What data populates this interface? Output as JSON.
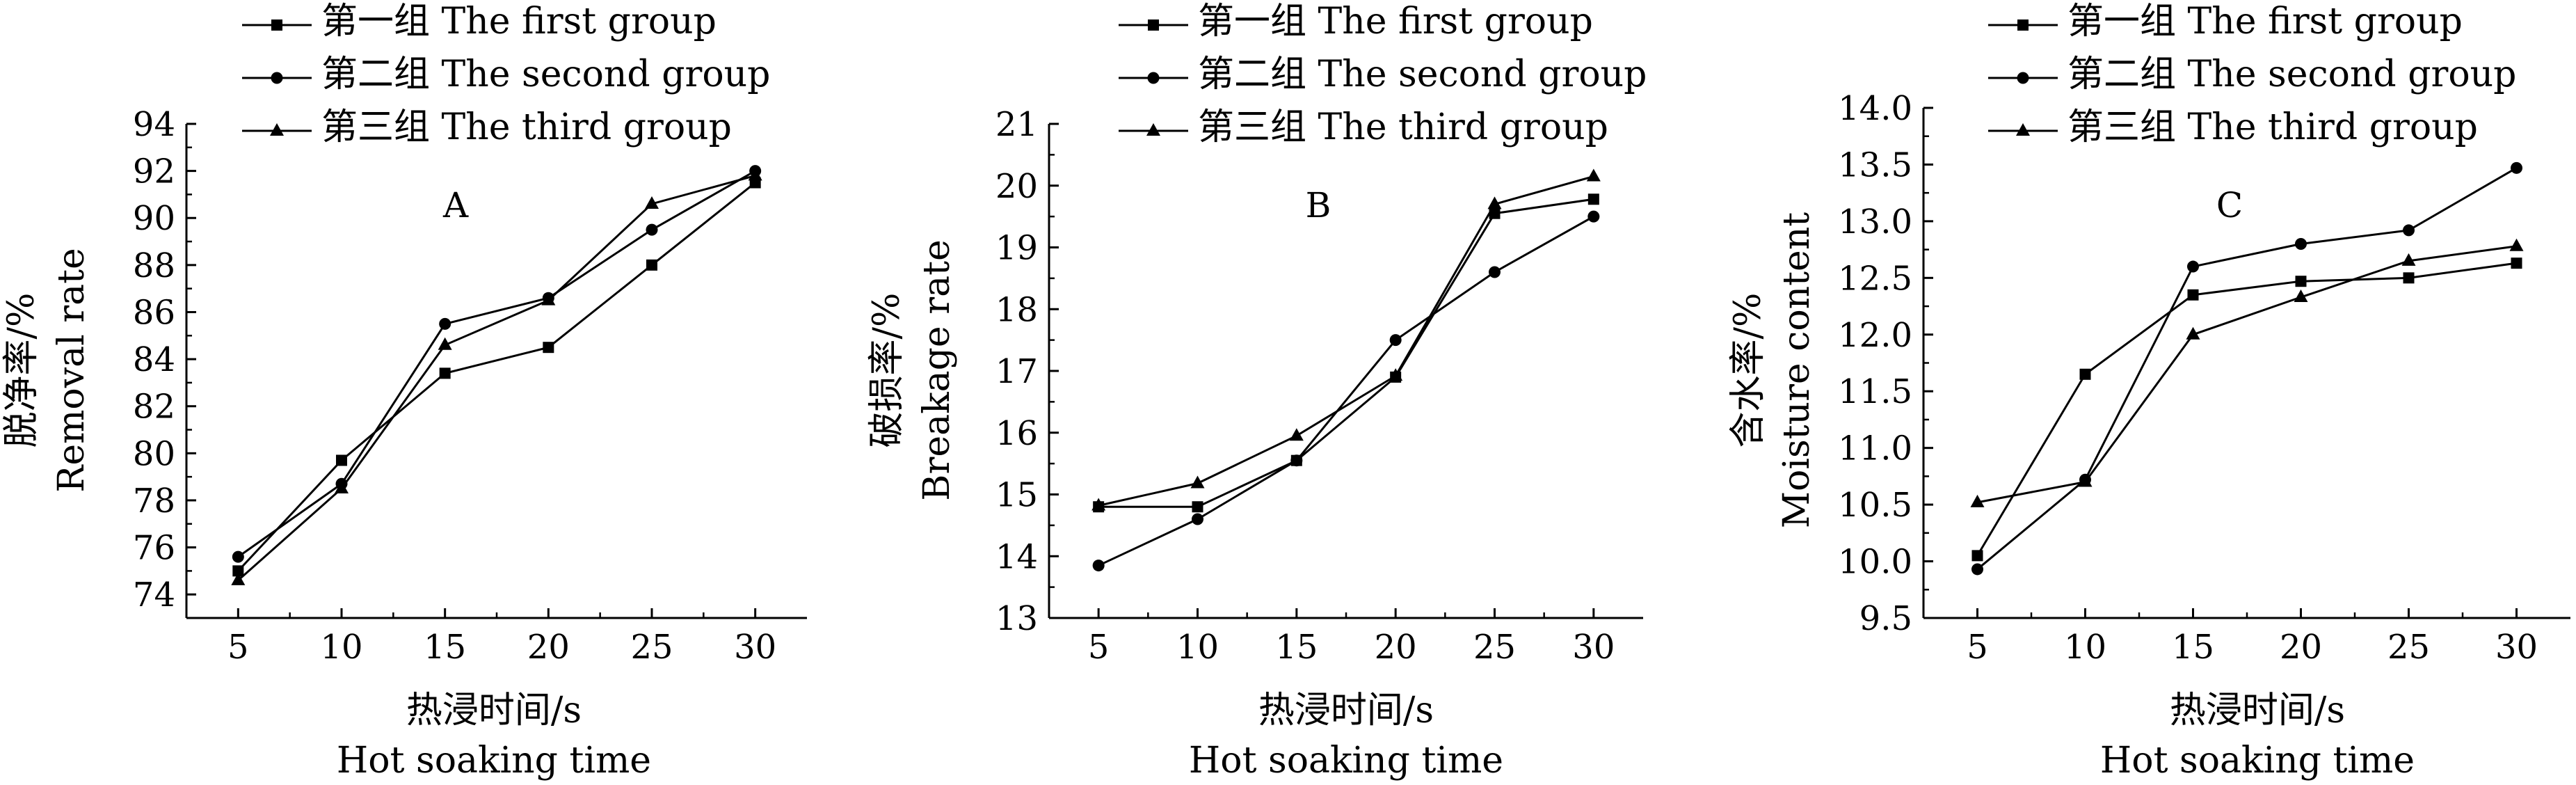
{
  "legend": [
    {
      "label": "第一组 The first group",
      "marker": "square"
    },
    {
      "label": "第二组 The second group",
      "marker": "circle"
    },
    {
      "label": "第三组 The third group",
      "marker": "triangle"
    }
  ],
  "chart_data": [
    {
      "type": "line",
      "panel_label": "A",
      "ylabel_cn": "脱净率/%",
      "ylabel_en": "Removal rate",
      "xlabel_cn": "热浸时间/s",
      "xlabel_en": "Hot soaking time",
      "x": [
        5,
        10,
        15,
        20,
        25,
        30
      ],
      "xlim": [
        2.5,
        32.5
      ],
      "ylim": [
        73,
        94
      ],
      "yticks": [
        74,
        76,
        78,
        80,
        82,
        84,
        86,
        88,
        90,
        92,
        94
      ],
      "ytick_labels": [
        "74",
        "76",
        "78",
        "80",
        "82",
        "84",
        "86",
        "88",
        "90",
        "92",
        "94"
      ],
      "xticks": [
        5,
        10,
        15,
        20,
        25,
        30
      ],
      "series": [
        {
          "name": "第一组 The first group",
          "marker": "square",
          "values": [
            75.0,
            79.7,
            83.4,
            84.5,
            88.0,
            91.5
          ]
        },
        {
          "name": "第二组 The second group",
          "marker": "circle",
          "values": [
            75.6,
            78.7,
            85.5,
            86.6,
            89.5,
            92.0
          ]
        },
        {
          "name": "第三组 The third group",
          "marker": "triangle",
          "values": [
            74.6,
            78.5,
            84.6,
            86.5,
            90.6,
            91.8
          ]
        }
      ]
    },
    {
      "type": "line",
      "panel_label": "B",
      "ylabel_cn": "破损率/%",
      "ylabel_en": "Breakage rate",
      "xlabel_cn": "热浸时间/s",
      "xlabel_en": "Hot soaking time",
      "x": [
        5,
        10,
        15,
        20,
        25,
        30
      ],
      "xlim": [
        2.5,
        32.5
      ],
      "ylim": [
        13,
        21
      ],
      "yticks": [
        13,
        14,
        15,
        16,
        17,
        18,
        19,
        20,
        21
      ],
      "ytick_labels": [
        "13",
        "14",
        "15",
        "16",
        "17",
        "18",
        "19",
        "20",
        "21"
      ],
      "xticks": [
        5,
        10,
        15,
        20,
        25,
        30
      ],
      "series": [
        {
          "name": "第一组 The first group",
          "marker": "square",
          "values": [
            14.8,
            14.8,
            15.55,
            16.9,
            19.55,
            19.78
          ]
        },
        {
          "name": "第二组 The second group",
          "marker": "circle",
          "values": [
            13.85,
            14.6,
            15.55,
            17.5,
            18.6,
            19.5
          ]
        },
        {
          "name": "第三组 The third group",
          "marker": "triangle",
          "values": [
            14.82,
            15.18,
            15.95,
            16.92,
            19.7,
            20.15
          ]
        }
      ]
    },
    {
      "type": "line",
      "panel_label": "C",
      "ylabel_cn": "含水率/%",
      "ylabel_en": "Moisture content",
      "xlabel_cn": "热浸时间/s",
      "xlabel_en": "Hot soaking time",
      "x": [
        5,
        10,
        15,
        20,
        25,
        30
      ],
      "xlim": [
        2.5,
        32.5
      ],
      "ylim": [
        9.5,
        14.0
      ],
      "yticks": [
        9.5,
        10.0,
        10.5,
        11.0,
        11.5,
        12.0,
        12.5,
        13.0,
        13.5,
        14.0
      ],
      "ytick_labels": [
        "9.5",
        "10.0",
        "10.5",
        "11.0",
        "11.5",
        "12.0",
        "12.5",
        "13.0",
        "13.5",
        "14.0"
      ],
      "xticks": [
        5,
        10,
        15,
        20,
        25,
        30
      ],
      "series": [
        {
          "name": "第一组 The first group",
          "marker": "square",
          "values": [
            10.05,
            11.65,
            12.35,
            12.47,
            12.5,
            12.63
          ]
        },
        {
          "name": "第二组 The second group",
          "marker": "circle",
          "values": [
            9.93,
            10.72,
            12.6,
            12.8,
            12.92,
            13.47
          ]
        },
        {
          "name": "第三组 The third group",
          "marker": "triangle",
          "values": [
            10.52,
            10.7,
            12.0,
            12.33,
            12.65,
            12.78
          ]
        }
      ]
    }
  ]
}
